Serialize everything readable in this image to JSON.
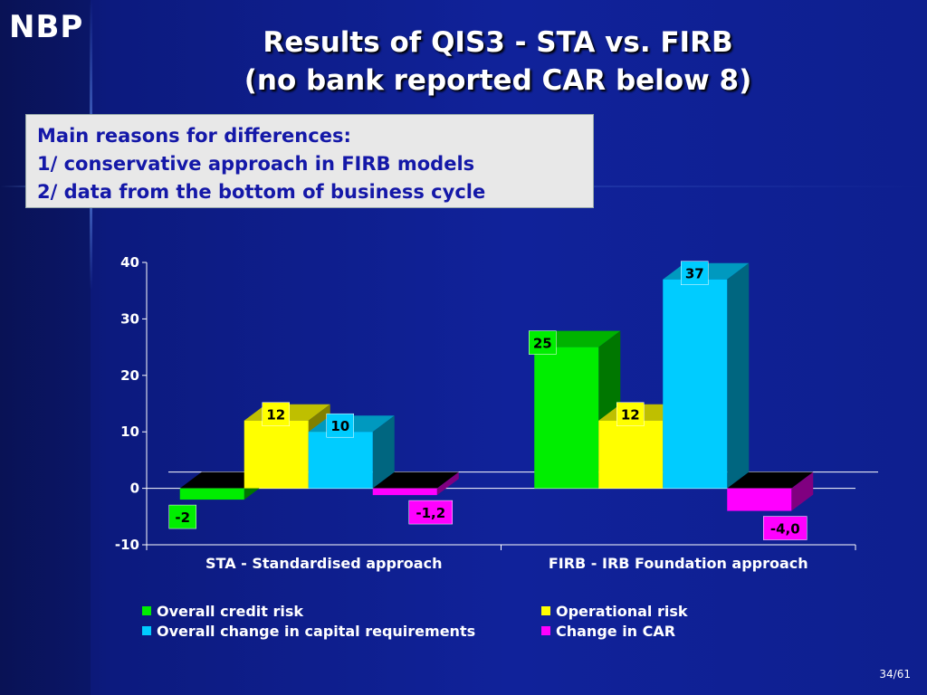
{
  "logo": "NBP",
  "title_line1": "Results of QIS3 - STA vs. FIRB",
  "title_line2": "(no bank reported CAR below 8)",
  "reasons": [
    "Main reasons for differences:",
    "1/ conservative approach in FIRB models",
    "2/ data from the bottom of business cycle"
  ],
  "page_number": "34/61",
  "chart_data": {
    "type": "bar",
    "categories": [
      "STA - Standardised approach",
      "FIRB - IRB Foundation approach"
    ],
    "series": [
      {
        "name": "Overall credit risk",
        "values": [
          -2,
          25
        ],
        "labels": [
          "-2",
          "25"
        ],
        "color": "#00ee00"
      },
      {
        "name": "Operational risk",
        "values": [
          12,
          12
        ],
        "labels": [
          "12",
          "12"
        ],
        "color": "#ffff00"
      },
      {
        "name": "Overall change in capital requirements",
        "values": [
          10,
          37
        ],
        "labels": [
          "10",
          "37"
        ],
        "color": "#00ccff"
      },
      {
        "name": "Change in CAR",
        "values": [
          -1.2,
          -4.0
        ],
        "labels": [
          "-1,2",
          "-4,0"
        ],
        "color": "#ff00ff"
      }
    ],
    "ylim": [
      -10,
      40
    ],
    "yticks": [
      "-10",
      "0",
      "10",
      "20",
      "30",
      "40"
    ],
    "legend_position": "bottom",
    "grid": false
  }
}
